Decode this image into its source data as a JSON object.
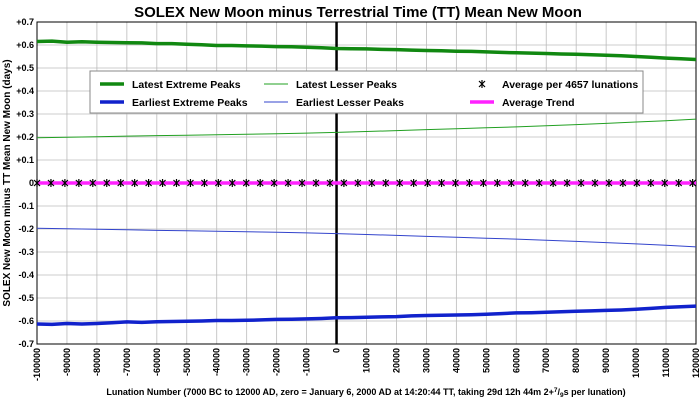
{
  "chart_data": {
    "type": "line",
    "title": "SOLEX New Moon minus Terrestrial Time (TT) Mean New Moon",
    "ylabel": "SOLEX New Moon minus TT Mean New Moon (days)",
    "xlabel_main": "Lunation Number (7000 BC to 12000 AD, zero = January 6, 2000 AD at 14:20:44 TT, taking 29d 12h 44m 2+",
    "xlabel_sup": "7",
    "xlabel_sub": "9",
    "xlabel_end": "s per lunation)",
    "xlim": [
      -100000,
      120000
    ],
    "ylim": [
      -0.7,
      0.7
    ],
    "x_ticks": [
      -100000,
      -90000,
      -80000,
      -70000,
      -60000,
      -50000,
      -40000,
      -30000,
      -20000,
      -10000,
      0,
      10000,
      20000,
      30000,
      40000,
      50000,
      60000,
      70000,
      80000,
      90000,
      100000,
      110000,
      120000
    ],
    "x_tick_labels": [
      "-100000",
      "-90000",
      "-80000",
      "-70000",
      "-60000",
      "-50000",
      "-40000",
      "-30000",
      "-20000",
      "-10000",
      "0",
      "10000",
      "20000",
      "30000",
      "40000",
      "50000",
      "60000",
      "70000",
      "80000",
      "90000",
      "100000",
      "110000",
      "120000"
    ],
    "y_ticks": [
      0.7,
      0.6,
      0.5,
      0.4,
      0.3,
      0.2,
      0.1,
      0,
      -0.1,
      -0.2,
      -0.3,
      -0.4,
      -0.5,
      -0.6,
      -0.7
    ],
    "y_tick_labels": [
      "+0.7",
      "+0.6",
      "+0.5",
      "+0.4",
      "+0.3",
      "+0.2",
      "+0.1",
      "0",
      "-0.1",
      "-0.2",
      "-0.3",
      "-0.4",
      "-0.5",
      "-0.6",
      "-0.7"
    ],
    "grid": true,
    "legend_placement": "top",
    "series": [
      {
        "name": "Latest Extreme Peaks",
        "color": "#118811",
        "style": "thick",
        "x": [
          -100000,
          -95000,
          -90000,
          -85000,
          -80000,
          -75000,
          -70000,
          -65000,
          -60000,
          -55000,
          -50000,
          -45000,
          -40000,
          -35000,
          -30000,
          -25000,
          -20000,
          -15000,
          -10000,
          -5000,
          0,
          5000,
          10000,
          15000,
          20000,
          25000,
          30000,
          35000,
          40000,
          45000,
          50000,
          55000,
          60000,
          65000,
          70000,
          75000,
          80000,
          85000,
          90000,
          95000,
          100000,
          105000,
          110000,
          115000,
          120000
        ],
        "values": [
          0.615,
          0.617,
          0.612,
          0.614,
          0.612,
          0.611,
          0.61,
          0.609,
          0.606,
          0.606,
          0.603,
          0.601,
          0.598,
          0.598,
          0.596,
          0.595,
          0.593,
          0.592,
          0.59,
          0.588,
          0.585,
          0.584,
          0.583,
          0.581,
          0.58,
          0.578,
          0.576,
          0.575,
          0.573,
          0.572,
          0.57,
          0.568,
          0.566,
          0.565,
          0.563,
          0.561,
          0.56,
          0.558,
          0.555,
          0.553,
          0.55,
          0.547,
          0.543,
          0.54,
          0.537
        ]
      },
      {
        "name": "Earliest Extreme Peaks",
        "color": "#1122cc",
        "style": "thick",
        "x": [
          -100000,
          -95000,
          -90000,
          -85000,
          -80000,
          -75000,
          -70000,
          -65000,
          -60000,
          -55000,
          -50000,
          -45000,
          -40000,
          -35000,
          -30000,
          -25000,
          -20000,
          -15000,
          -10000,
          -5000,
          0,
          5000,
          10000,
          15000,
          20000,
          25000,
          30000,
          35000,
          40000,
          45000,
          50000,
          55000,
          60000,
          65000,
          70000,
          75000,
          80000,
          85000,
          90000,
          95000,
          100000,
          105000,
          110000,
          115000,
          120000
        ],
        "values": [
          -0.613,
          -0.615,
          -0.611,
          -0.613,
          -0.611,
          -0.608,
          -0.604,
          -0.606,
          -0.603,
          -0.602,
          -0.601,
          -0.6,
          -0.598,
          -0.598,
          -0.597,
          -0.595,
          -0.593,
          -0.592,
          -0.591,
          -0.589,
          -0.586,
          -0.585,
          -0.584,
          -0.582,
          -0.581,
          -0.578,
          -0.576,
          -0.575,
          -0.574,
          -0.573,
          -0.571,
          -0.568,
          -0.565,
          -0.564,
          -0.562,
          -0.56,
          -0.558,
          -0.556,
          -0.554,
          -0.552,
          -0.549,
          -0.545,
          -0.541,
          -0.538,
          -0.535
        ]
      },
      {
        "name": "Latest Lesser Peaks",
        "color": "#22a022",
        "style": "thin",
        "x": [
          -100000,
          -90000,
          -80000,
          -70000,
          -60000,
          -50000,
          -40000,
          -30000,
          -20000,
          -10000,
          0,
          10000,
          20000,
          30000,
          40000,
          50000,
          60000,
          70000,
          80000,
          90000,
          100000,
          110000,
          120000
        ],
        "values": [
          0.197,
          0.199,
          0.201,
          0.204,
          0.206,
          0.208,
          0.21,
          0.212,
          0.214,
          0.217,
          0.22,
          0.224,
          0.228,
          0.232,
          0.236,
          0.24,
          0.244,
          0.249,
          0.254,
          0.259,
          0.265,
          0.271,
          0.278
        ]
      },
      {
        "name": "Earliest Lesser Peaks",
        "color": "#3344cc",
        "style": "thin",
        "x": [
          -100000,
          -90000,
          -80000,
          -70000,
          -60000,
          -50000,
          -40000,
          -30000,
          -20000,
          -10000,
          0,
          10000,
          20000,
          30000,
          40000,
          50000,
          60000,
          70000,
          80000,
          90000,
          100000,
          110000,
          120000
        ],
        "values": [
          -0.197,
          -0.199,
          -0.201,
          -0.203,
          -0.206,
          -0.208,
          -0.21,
          -0.212,
          -0.214,
          -0.217,
          -0.22,
          -0.224,
          -0.228,
          -0.232,
          -0.236,
          -0.24,
          -0.244,
          -0.249,
          -0.254,
          -0.259,
          -0.265,
          -0.271,
          -0.278
        ]
      },
      {
        "name": "Average per 4657 lunations",
        "color": "#000000",
        "style": "markers",
        "x": [
          -100000,
          -95343,
          -90686,
          -86029,
          -81372,
          -76715,
          -72058,
          -67401,
          -62744,
          -58087,
          -53430,
          -48773,
          -44116,
          -39459,
          -34802,
          -30145,
          -25488,
          -20831,
          -16174,
          -11517,
          -6860,
          -2203,
          2454,
          7111,
          11768,
          16425,
          21082,
          25739,
          30396,
          35053,
          39710,
          44367,
          49024,
          53681,
          58338,
          62995,
          67652,
          72309,
          76966,
          81623,
          86280,
          90937,
          95594,
          100251,
          104908,
          109565,
          114222,
          118879
        ],
        "values": [
          0,
          0,
          0,
          0,
          0,
          0,
          0,
          0,
          0,
          0,
          0,
          0,
          0,
          0,
          0,
          0,
          0,
          0,
          0,
          0,
          0,
          0,
          0,
          0,
          0,
          0,
          0,
          0,
          0,
          0,
          0,
          0,
          0,
          0,
          0,
          0,
          0,
          0,
          0,
          0,
          0,
          0,
          0,
          0,
          0,
          0,
          0,
          0
        ]
      },
      {
        "name": "Average Trend",
        "color": "#ff22ff",
        "style": "thick",
        "x": [
          -100000,
          120000
        ],
        "values": [
          0,
          0
        ]
      }
    ],
    "legend_items": [
      {
        "label": "Latest Extreme Peaks",
        "series": 0
      },
      {
        "label": "Latest Lesser Peaks",
        "series": 2
      },
      {
        "label": "Average per 4657 lunations",
        "series": 4
      },
      {
        "label": "Earliest Extreme Peaks",
        "series": 1
      },
      {
        "label": "Earliest Lesser Peaks",
        "series": 3
      },
      {
        "label": "Average Trend",
        "series": 5
      }
    ]
  }
}
